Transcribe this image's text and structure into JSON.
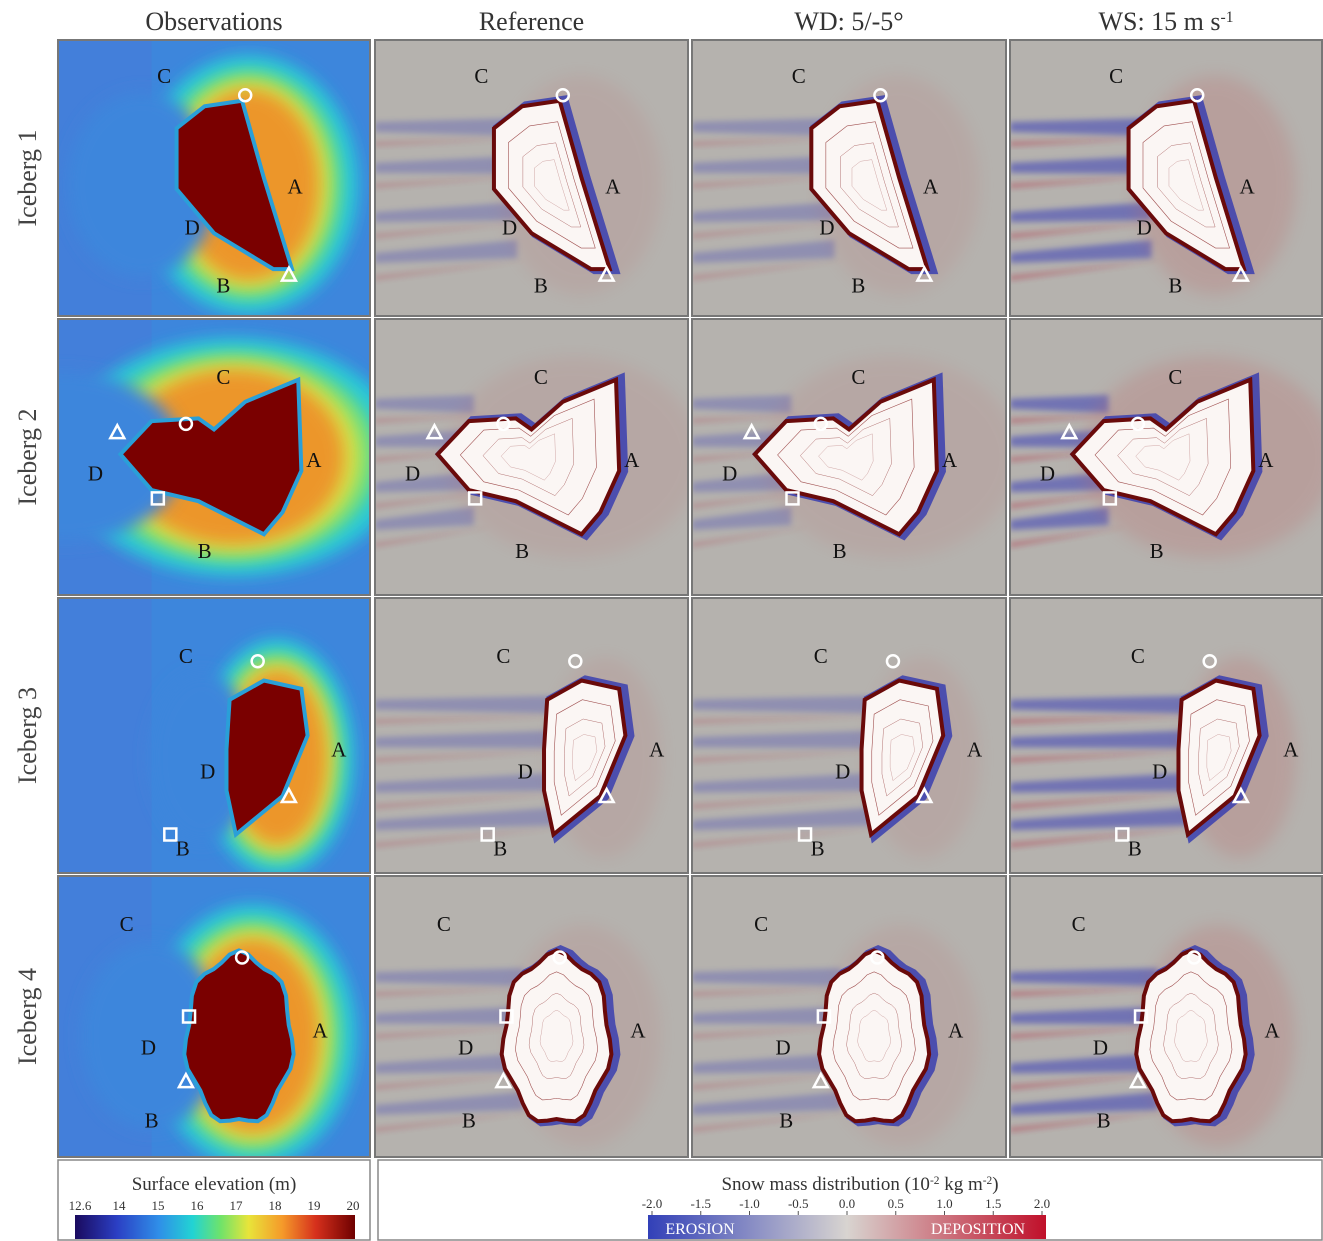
{
  "columns": [
    [
      {
        "text": "Observations"
      }
    ],
    [
      {
        "text": "Reference"
      }
    ],
    [
      {
        "text": "WD: 5/-5°"
      }
    ],
    [
      {
        "text": "WS: 15 m s"
      },
      {
        "text": "-1",
        "sup": true
      }
    ]
  ],
  "rows": [
    "Iceberg 1",
    "Iceberg 2",
    "Iceberg 3",
    "Iceberg 4"
  ],
  "panel_letters": [
    "A",
    "B",
    "C",
    "D"
  ],
  "colorbars": {
    "elevation": {
      "title": "Surface elevation (m)",
      "ticks": [
        "12.6",
        "14",
        "15",
        "16",
        "17",
        "18",
        "19",
        "20"
      ]
    },
    "snow": {
      "title_parts": [
        {
          "text": "Snow mass distribution (10"
        },
        {
          "text": "-2",
          "sup": true
        },
        {
          "text": " kg m"
        },
        {
          "text": "-2",
          "sup": true
        },
        {
          "text": ")"
        }
      ],
      "ticks": [
        "-2.0",
        "-1.5",
        "-1.0",
        "-0.5",
        "0.0",
        "0.5",
        "1.0",
        "1.5",
        "2.0"
      ],
      "low": "EROSION",
      "high": "DEPOSITION"
    }
  }
}
